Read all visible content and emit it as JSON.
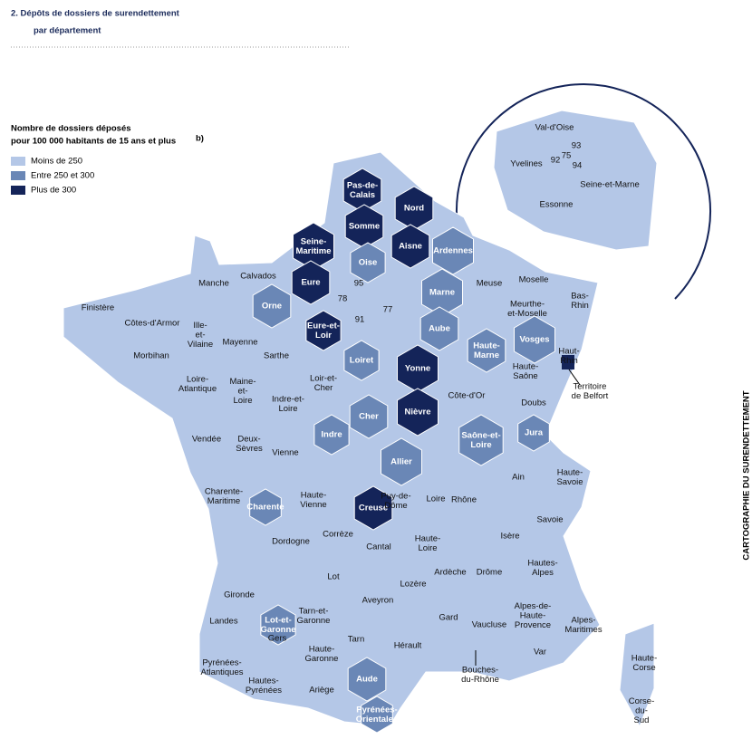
{
  "header": {
    "title": [
      "2.  Dépôts de dossiers de surendettement",
      "par département"
    ]
  },
  "legend": {
    "title": [
      "Nombre de dossiers déposés",
      "pour 100 000 habitants de 15 ans et plus"
    ],
    "title_note": "b)",
    "items": [
      {
        "label": "Moins de 250",
        "color": "#b4c7e7"
      },
      {
        "label": "Entre 250 et 300",
        "color": "#6a87b6"
      },
      {
        "label": "Plus de 300",
        "color": "#142459"
      }
    ]
  },
  "side_text": "CARTOGRAPHIE DU SURENDETTEMENT",
  "departments": [
    {
      "label": [
        "Pas-de-",
        "Calais"
      ],
      "class": 2
    },
    {
      "label": [
        "Nord"
      ],
      "class": 2
    },
    {
      "label": [
        "Somme"
      ],
      "class": 2
    },
    {
      "label": [
        "Seine-",
        "Maritime"
      ],
      "class": 2
    },
    {
      "label": [
        "Aisne"
      ],
      "class": 2
    },
    {
      "label": [
        "Eure"
      ],
      "class": 2
    },
    {
      "label": [
        "Eure-et-",
        "Loir"
      ],
      "class": 2
    },
    {
      "label": [
        "Yonne"
      ],
      "class": 2
    },
    {
      "label": [
        "Nièvre"
      ],
      "class": 2
    },
    {
      "label": [
        "Creuse"
      ],
      "class": 2
    },
    {
      "label": [
        "Territoire",
        "de Belfort"
      ],
      "class": 2
    },
    {
      "label": [
        "Oise"
      ],
      "class": 1
    },
    {
      "label": [
        "Ardennes"
      ],
      "class": 1
    },
    {
      "label": [
        "Marne"
      ],
      "class": 1
    },
    {
      "label": [
        "Orne"
      ],
      "class": 1
    },
    {
      "label": [
        "Aube"
      ],
      "class": 1
    },
    {
      "label": [
        "Haute-",
        "Marne"
      ],
      "class": 1
    },
    {
      "label": [
        "Vosges"
      ],
      "class": 1
    },
    {
      "label": [
        "Loiret"
      ],
      "class": 1
    },
    {
      "label": [
        "Cher"
      ],
      "class": 1
    },
    {
      "label": [
        "Indre"
      ],
      "class": 1
    },
    {
      "label": [
        "Allier"
      ],
      "class": 1
    },
    {
      "label": [
        "Saône-et-",
        "Loire"
      ],
      "class": 1
    },
    {
      "label": [
        "Jura"
      ],
      "class": 1
    },
    {
      "label": [
        "Charente"
      ],
      "class": 1
    },
    {
      "label": [
        "Lot-et-",
        "Garonne"
      ],
      "class": 1
    },
    {
      "label": [
        "Aude"
      ],
      "class": 1
    },
    {
      "label": [
        "Pyrénées-",
        "Orientales"
      ],
      "class": 1
    },
    {
      "label": [
        "Manche"
      ],
      "class": 0
    },
    {
      "label": [
        "Calvados"
      ],
      "class": 0
    },
    {
      "label": [
        "Finistère"
      ],
      "class": 0
    },
    {
      "label": [
        "Côtes-d'Armor"
      ],
      "class": 0
    },
    {
      "label": [
        "Ille-",
        "et-",
        "Vilaine"
      ],
      "class": 0
    },
    {
      "label": [
        "Morbihan"
      ],
      "class": 0
    },
    {
      "label": [
        "Mayenne"
      ],
      "class": 0
    },
    {
      "label": [
        "Sarthe"
      ],
      "class": 0
    },
    {
      "label": [
        "Loire-",
        "Atlantique"
      ],
      "class": 0
    },
    {
      "label": [
        "Maine-",
        "et-",
        "Loire"
      ],
      "class": 0
    },
    {
      "label": [
        "Indre-et-",
        "Loire"
      ],
      "class": 0
    },
    {
      "label": [
        "Loir-et-",
        "Cher"
      ],
      "class": 0
    },
    {
      "label": [
        "Vendée"
      ],
      "class": 0
    },
    {
      "label": [
        "Deux-",
        "Sèvres"
      ],
      "class": 0
    },
    {
      "label": [
        "Vienne"
      ],
      "class": 0
    },
    {
      "label": [
        "Charente-",
        "Maritime"
      ],
      "class": 0
    },
    {
      "label": [
        "Haute-",
        "Vienne"
      ],
      "class": 0
    },
    {
      "label": [
        "Gironde"
      ],
      "class": 0
    },
    {
      "label": [
        "Dordogne"
      ],
      "class": 0
    },
    {
      "label": [
        "Corrèze"
      ],
      "class": 0
    },
    {
      "label": [
        "Landes"
      ],
      "class": 0
    },
    {
      "label": [
        "Gers"
      ],
      "class": 0
    },
    {
      "label": [
        "Tarn-et-",
        "Garonne"
      ],
      "class": 0
    },
    {
      "label": [
        "Lot"
      ],
      "class": 0
    },
    {
      "label": [
        "Aveyron"
      ],
      "class": 0
    },
    {
      "label": [
        "Tarn"
      ],
      "class": 0
    },
    {
      "label": [
        "Haute-",
        "Garonne"
      ],
      "class": 0
    },
    {
      "label": [
        "Pyrénées-",
        "Atlantiques"
      ],
      "class": 0
    },
    {
      "label": [
        "Hautes-",
        "Pyrénées"
      ],
      "class": 0
    },
    {
      "label": [
        "Ariège"
      ],
      "class": 0
    },
    {
      "label": [
        "Hérault"
      ],
      "class": 0
    },
    {
      "label": [
        "Cantal"
      ],
      "class": 0
    },
    {
      "label": [
        "Puy-de-",
        "Dôme"
      ],
      "class": 0
    },
    {
      "label": [
        "Loire"
      ],
      "class": 0
    },
    {
      "label": [
        "Rhône"
      ],
      "class": 0
    },
    {
      "label": [
        "Haute-",
        "Loire"
      ],
      "class": 0
    },
    {
      "label": [
        "Lozère"
      ],
      "class": 0
    },
    {
      "label": [
        "Gard"
      ],
      "class": 0
    },
    {
      "label": [
        "Ardèche"
      ],
      "class": 0
    },
    {
      "label": [
        "Drôme"
      ],
      "class": 0
    },
    {
      "label": [
        "Vaucluse"
      ],
      "class": 0
    },
    {
      "label": [
        "Bouches-",
        "du-Rhône"
      ],
      "class": 0
    },
    {
      "label": [
        "Var"
      ],
      "class": 0
    },
    {
      "label": [
        "Alpes-de-",
        "Haute-",
        "Provence"
      ],
      "class": 0
    },
    {
      "label": [
        "Alpes-",
        "Maritimes"
      ],
      "class": 0
    },
    {
      "label": [
        "Hautes-",
        "Alpes"
      ],
      "class": 0
    },
    {
      "label": [
        "Isère"
      ],
      "class": 0
    },
    {
      "label": [
        "Savoie"
      ],
      "class": 0
    },
    {
      "label": [
        "Haute-",
        "Savoie"
      ],
      "class": 0
    },
    {
      "label": [
        "Ain"
      ],
      "class": 0
    },
    {
      "label": [
        "Haute-",
        "Saône"
      ],
      "class": 0
    },
    {
      "label": [
        "Doubs"
      ],
      "class": 0
    },
    {
      "label": [
        "Côte-d'Or"
      ],
      "class": 0
    },
    {
      "label": [
        "Haut-",
        "Rhin"
      ],
      "class": 0
    },
    {
      "label": [
        "Bas-",
        "Rhin"
      ],
      "class": 0
    },
    {
      "label": [
        "Moselle"
      ],
      "class": 0
    },
    {
      "label": [
        "Meurthe-",
        "et-Moselle"
      ],
      "class": 0
    },
    {
      "label": [
        "Meuse"
      ],
      "class": 0
    },
    {
      "label": [
        "Haute-",
        "Corse"
      ],
      "class": 0
    },
    {
      "label": [
        "Corse-",
        "du-",
        "Sud"
      ],
      "class": 0
    },
    {
      "label": [
        "78"
      ],
      "class": 0
    },
    {
      "label": [
        "95"
      ],
      "class": 0
    },
    {
      "label": [
        "91"
      ],
      "class": 0
    },
    {
      "label": [
        "77"
      ],
      "class": 0
    },
    {
      "label": [
        "Val-d'Oise"
      ],
      "class": 0
    },
    {
      "label": [
        "Yvelines"
      ],
      "class": 0
    },
    {
      "label": [
        "92"
      ],
      "class": 0
    },
    {
      "label": [
        "75"
      ],
      "class": 0
    },
    {
      "label": [
        "93"
      ],
      "class": 0
    },
    {
      "label": [
        "94"
      ],
      "class": 0
    },
    {
      "label": [
        "Seine-et-Marne"
      ],
      "class": 0
    },
    {
      "label": [
        "Essonne"
      ],
      "class": 0
    }
  ]
}
